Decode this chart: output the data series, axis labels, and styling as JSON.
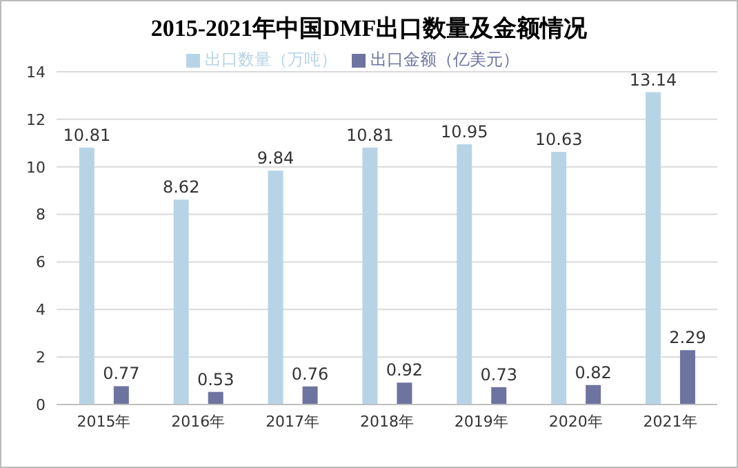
{
  "chart_data": {
    "type": "bar",
    "title": "2015-2021年中国DMF出口数量及金额情况",
    "categories": [
      "2015年",
      "2016年",
      "2017年",
      "2018年",
      "2019年",
      "2020年",
      "2021年"
    ],
    "series": [
      {
        "name": "出口数量（万吨）",
        "color": "#b7d4e6",
        "values": [
          10.81,
          8.62,
          9.84,
          10.81,
          10.95,
          10.63,
          13.14
        ]
      },
      {
        "name": "出口金额（亿美元）",
        "color": "#6e74a0",
        "values": [
          0.77,
          0.53,
          0.76,
          0.92,
          0.73,
          0.82,
          2.29
        ]
      }
    ],
    "ylim": [
      0,
      14
    ],
    "yticks": [
      0,
      2,
      4,
      6,
      8,
      10,
      12,
      14
    ],
    "grid": "y",
    "legend": "top",
    "data_labels": true
  }
}
